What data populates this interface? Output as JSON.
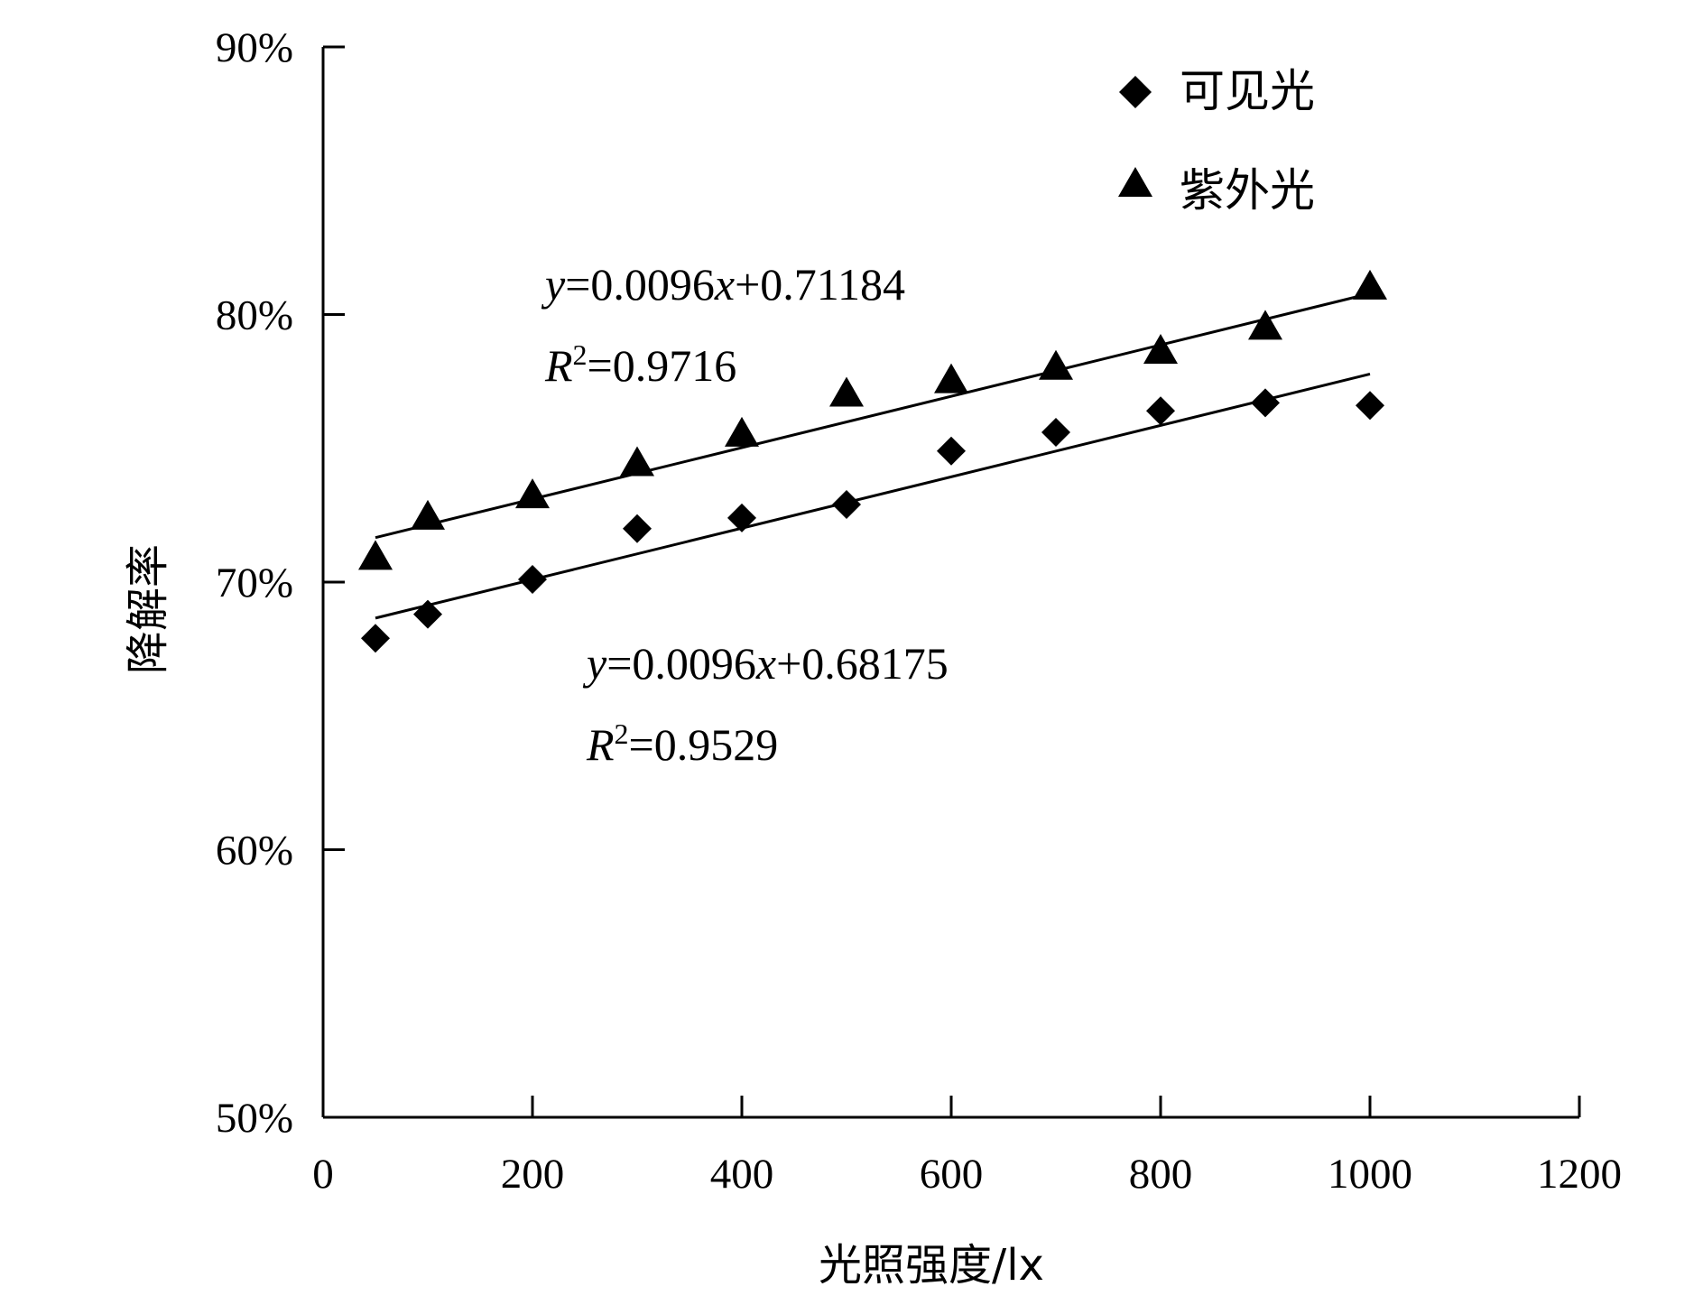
{
  "chart_data": {
    "type": "scatter",
    "xlabel": "光照强度/lx",
    "ylabel": "降解率",
    "xlim": [
      0,
      1200
    ],
    "ylim": [
      0.5,
      0.9
    ],
    "xticks": [
      0,
      200,
      400,
      600,
      800,
      1000,
      1200
    ],
    "yticks": [
      0.5,
      0.6,
      0.7,
      0.8,
      0.9
    ],
    "ytick_labels": [
      "50%",
      "60%",
      "70%",
      "80%",
      "90%"
    ],
    "grid": false,
    "legend": {
      "placement": "top-right"
    },
    "series": [
      {
        "name": "可见光",
        "marker": "diamond",
        "x": [
          50,
          100,
          200,
          300,
          400,
          500,
          600,
          700,
          800,
          900,
          1000
        ],
        "y": [
          0.679,
          0.688,
          0.701,
          0.72,
          0.724,
          0.729,
          0.749,
          0.756,
          0.764,
          0.767,
          0.766
        ],
        "trendline": {
          "slope_per_100": 0.0096,
          "intercept": 0.68175,
          "x_range": [
            50,
            1000
          ],
          "equation": {
            "y": "y",
            "rest": "=0.0096",
            "x": "x",
            "tail": "+0.68175"
          },
          "r2": {
            "R": "R",
            "exp": "2",
            "value": "=0.9529"
          }
        }
      },
      {
        "name": "紫外光",
        "marker": "triangle",
        "x": [
          50,
          100,
          200,
          300,
          400,
          500,
          600,
          700,
          800,
          900,
          1000
        ],
        "y": [
          0.709,
          0.724,
          0.732,
          0.744,
          0.755,
          0.77,
          0.775,
          0.78,
          0.786,
          0.795,
          0.81
        ],
        "trendline": {
          "slope_per_100": 0.0096,
          "intercept": 0.71184,
          "x_range": [
            50,
            1000
          ],
          "equation": {
            "y": "y",
            "rest": "=0.0096",
            "x": "x",
            "tail": "+0.71184"
          },
          "r2": {
            "R": "R",
            "exp": "2",
            "value": "=0.9716"
          }
        }
      }
    ],
    "colors": {
      "marker": "#000000",
      "axis": "#000000",
      "line": "#000000"
    }
  }
}
